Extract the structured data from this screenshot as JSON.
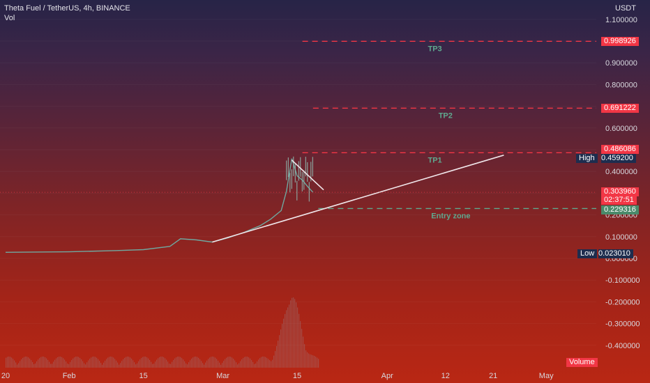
{
  "header": {
    "symbol_line": "Theta Fuel / TetherUS, 4h, BINANCE",
    "volume_label": "Vol"
  },
  "axis": {
    "currency": "USDT"
  },
  "tags": {
    "tp3": "0.998926",
    "tp2": "0.691222",
    "tp1": "0.486086",
    "high_label": "High",
    "high_value": "0.459200",
    "last_price": "0.303960",
    "countdown": "02:37:51",
    "entry": "0.229316",
    "low_label": "Low",
    "low_value": "0.023010",
    "volume_button": "Volume"
  },
  "chart_data": {
    "type": "candlestick",
    "title": "Theta Fuel / TetherUS, 4h, BINANCE",
    "ylabel": "USDT",
    "ylim": [
      -0.45,
      1.12
    ],
    "y_ticks": [
      "1.100000",
      "1.000000",
      "0.900000",
      "0.800000",
      "0.700000",
      "0.600000",
      "0.500000",
      "0.400000",
      "0.300000",
      "0.200000",
      "0.100000",
      "0.000000",
      "-0.100000",
      "-0.200000",
      "-0.300000",
      "-0.400000"
    ],
    "x_ticks": [
      "20",
      "Feb",
      "15",
      "Mar",
      "15",
      "Apr",
      "12",
      "21",
      "May"
    ],
    "price_path": [
      [
        "Jan 20",
        0.028
      ],
      [
        "Feb 1",
        0.03
      ],
      [
        "Feb 10",
        0.036
      ],
      [
        "Feb 15",
        0.04
      ],
      [
        "Feb 20",
        0.055
      ],
      [
        "Feb 22",
        0.09
      ],
      [
        "Feb 25",
        0.085
      ],
      [
        "Feb 28",
        0.075
      ],
      [
        "Mar 2",
        0.095
      ],
      [
        "Mar 5",
        0.12
      ],
      [
        "Mar 8",
        0.15
      ],
      [
        "Mar 10",
        0.18
      ],
      [
        "Mar 12",
        0.22
      ],
      [
        "Mar 13",
        0.31
      ],
      [
        "Mar 14",
        0.459
      ],
      [
        "Mar 15",
        0.38
      ],
      [
        "Mar 16",
        0.36
      ],
      [
        "Mar 17",
        0.33
      ],
      [
        "Mar 18",
        0.304
      ]
    ],
    "levels": [
      {
        "label": "TP3",
        "value": 0.998926,
        "color": "#f23645"
      },
      {
        "label": "TP2",
        "value": 0.691222,
        "color": "#f23645"
      },
      {
        "label": "TP1",
        "value": 0.486086,
        "color": "#f23645"
      },
      {
        "label": "Entry zone",
        "value": 0.229316,
        "color": "#5fa88e"
      }
    ],
    "trendlines": [
      {
        "name": "support",
        "from": [
          "Feb 28",
          0.075
        ],
        "to": [
          "Apr 23",
          0.475
        ]
      },
      {
        "name": "falling-wedge",
        "from": [
          "Mar 14",
          0.452
        ],
        "to": [
          "Mar 20",
          0.315
        ]
      }
    ],
    "high": 0.4592,
    "low": 0.02301,
    "last": 0.30396,
    "volume_peak_date": "Mar 14"
  }
}
